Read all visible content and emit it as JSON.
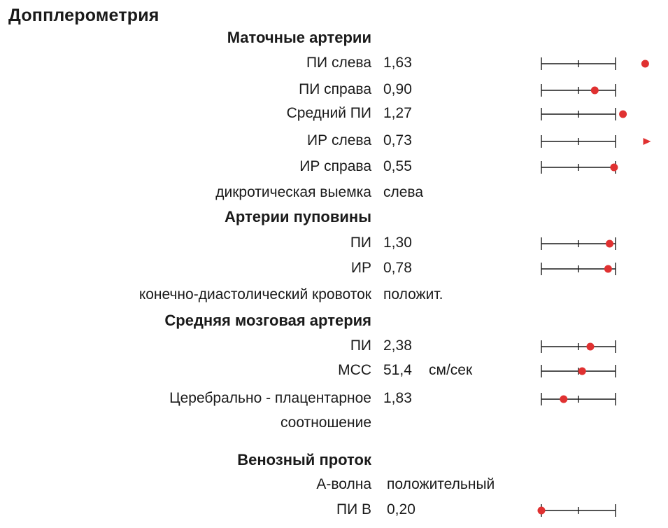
{
  "title": "Допплерометрия",
  "colors": {
    "marker": "#e03131",
    "scale_line": "#1a1a1a",
    "text": "#1a1a1a"
  },
  "sections": [
    {
      "title": "Маточные артерии",
      "rows": [
        {
          "label": "ПИ слева",
          "value": "1,63",
          "gauge": {
            "position": 1.4,
            "marker": "dot"
          }
        },
        {
          "label": "ПИ справа",
          "value": "0,90",
          "gauge": {
            "position": 0.72,
            "marker": "dot"
          }
        },
        {
          "label": "Средний ПИ",
          "value": "1,27",
          "gauge": {
            "position": 1.1,
            "marker": "dot"
          }
        },
        {
          "label": "ИР слева",
          "value": "0,73",
          "gauge": {
            "position": 1.42,
            "marker": "arrow"
          }
        },
        {
          "label": "ИР справа",
          "value": "0,55",
          "gauge": {
            "position": 0.98,
            "marker": "dot"
          }
        },
        {
          "label": "дикротическая выемка",
          "value": "слева"
        }
      ]
    },
    {
      "title": "Артерии пуповины",
      "rows": [
        {
          "label": "ПИ",
          "value": "1,30",
          "gauge": {
            "position": 0.92,
            "marker": "dot"
          }
        },
        {
          "label": "ИР",
          "value": "0,78",
          "gauge": {
            "position": 0.9,
            "marker": "dot"
          }
        },
        {
          "label": "конечно-диастолический кровоток",
          "value": "положит."
        }
      ]
    },
    {
      "title": "Средняя мозговая артерия",
      "rows": [
        {
          "label": "ПИ",
          "value": "2,38",
          "gauge": {
            "position": 0.66,
            "marker": "dot"
          }
        },
        {
          "label": "МСС",
          "value": "51,4",
          "unit": "см/сек",
          "gauge": {
            "position": 0.55,
            "marker": "dot"
          }
        },
        {
          "label": "Церебрально - плацентарное",
          "label2": "соотношение",
          "value": "1,83",
          "gauge": {
            "position": 0.3,
            "marker": "dot"
          }
        }
      ]
    },
    {
      "title": "Венозный проток",
      "rows": [
        {
          "label": "А-волна",
          "value": "положительный"
        },
        {
          "label": "ПИ В",
          "value": "0,20",
          "gauge": {
            "position": 0.0,
            "marker": "dot"
          }
        }
      ]
    }
  ]
}
